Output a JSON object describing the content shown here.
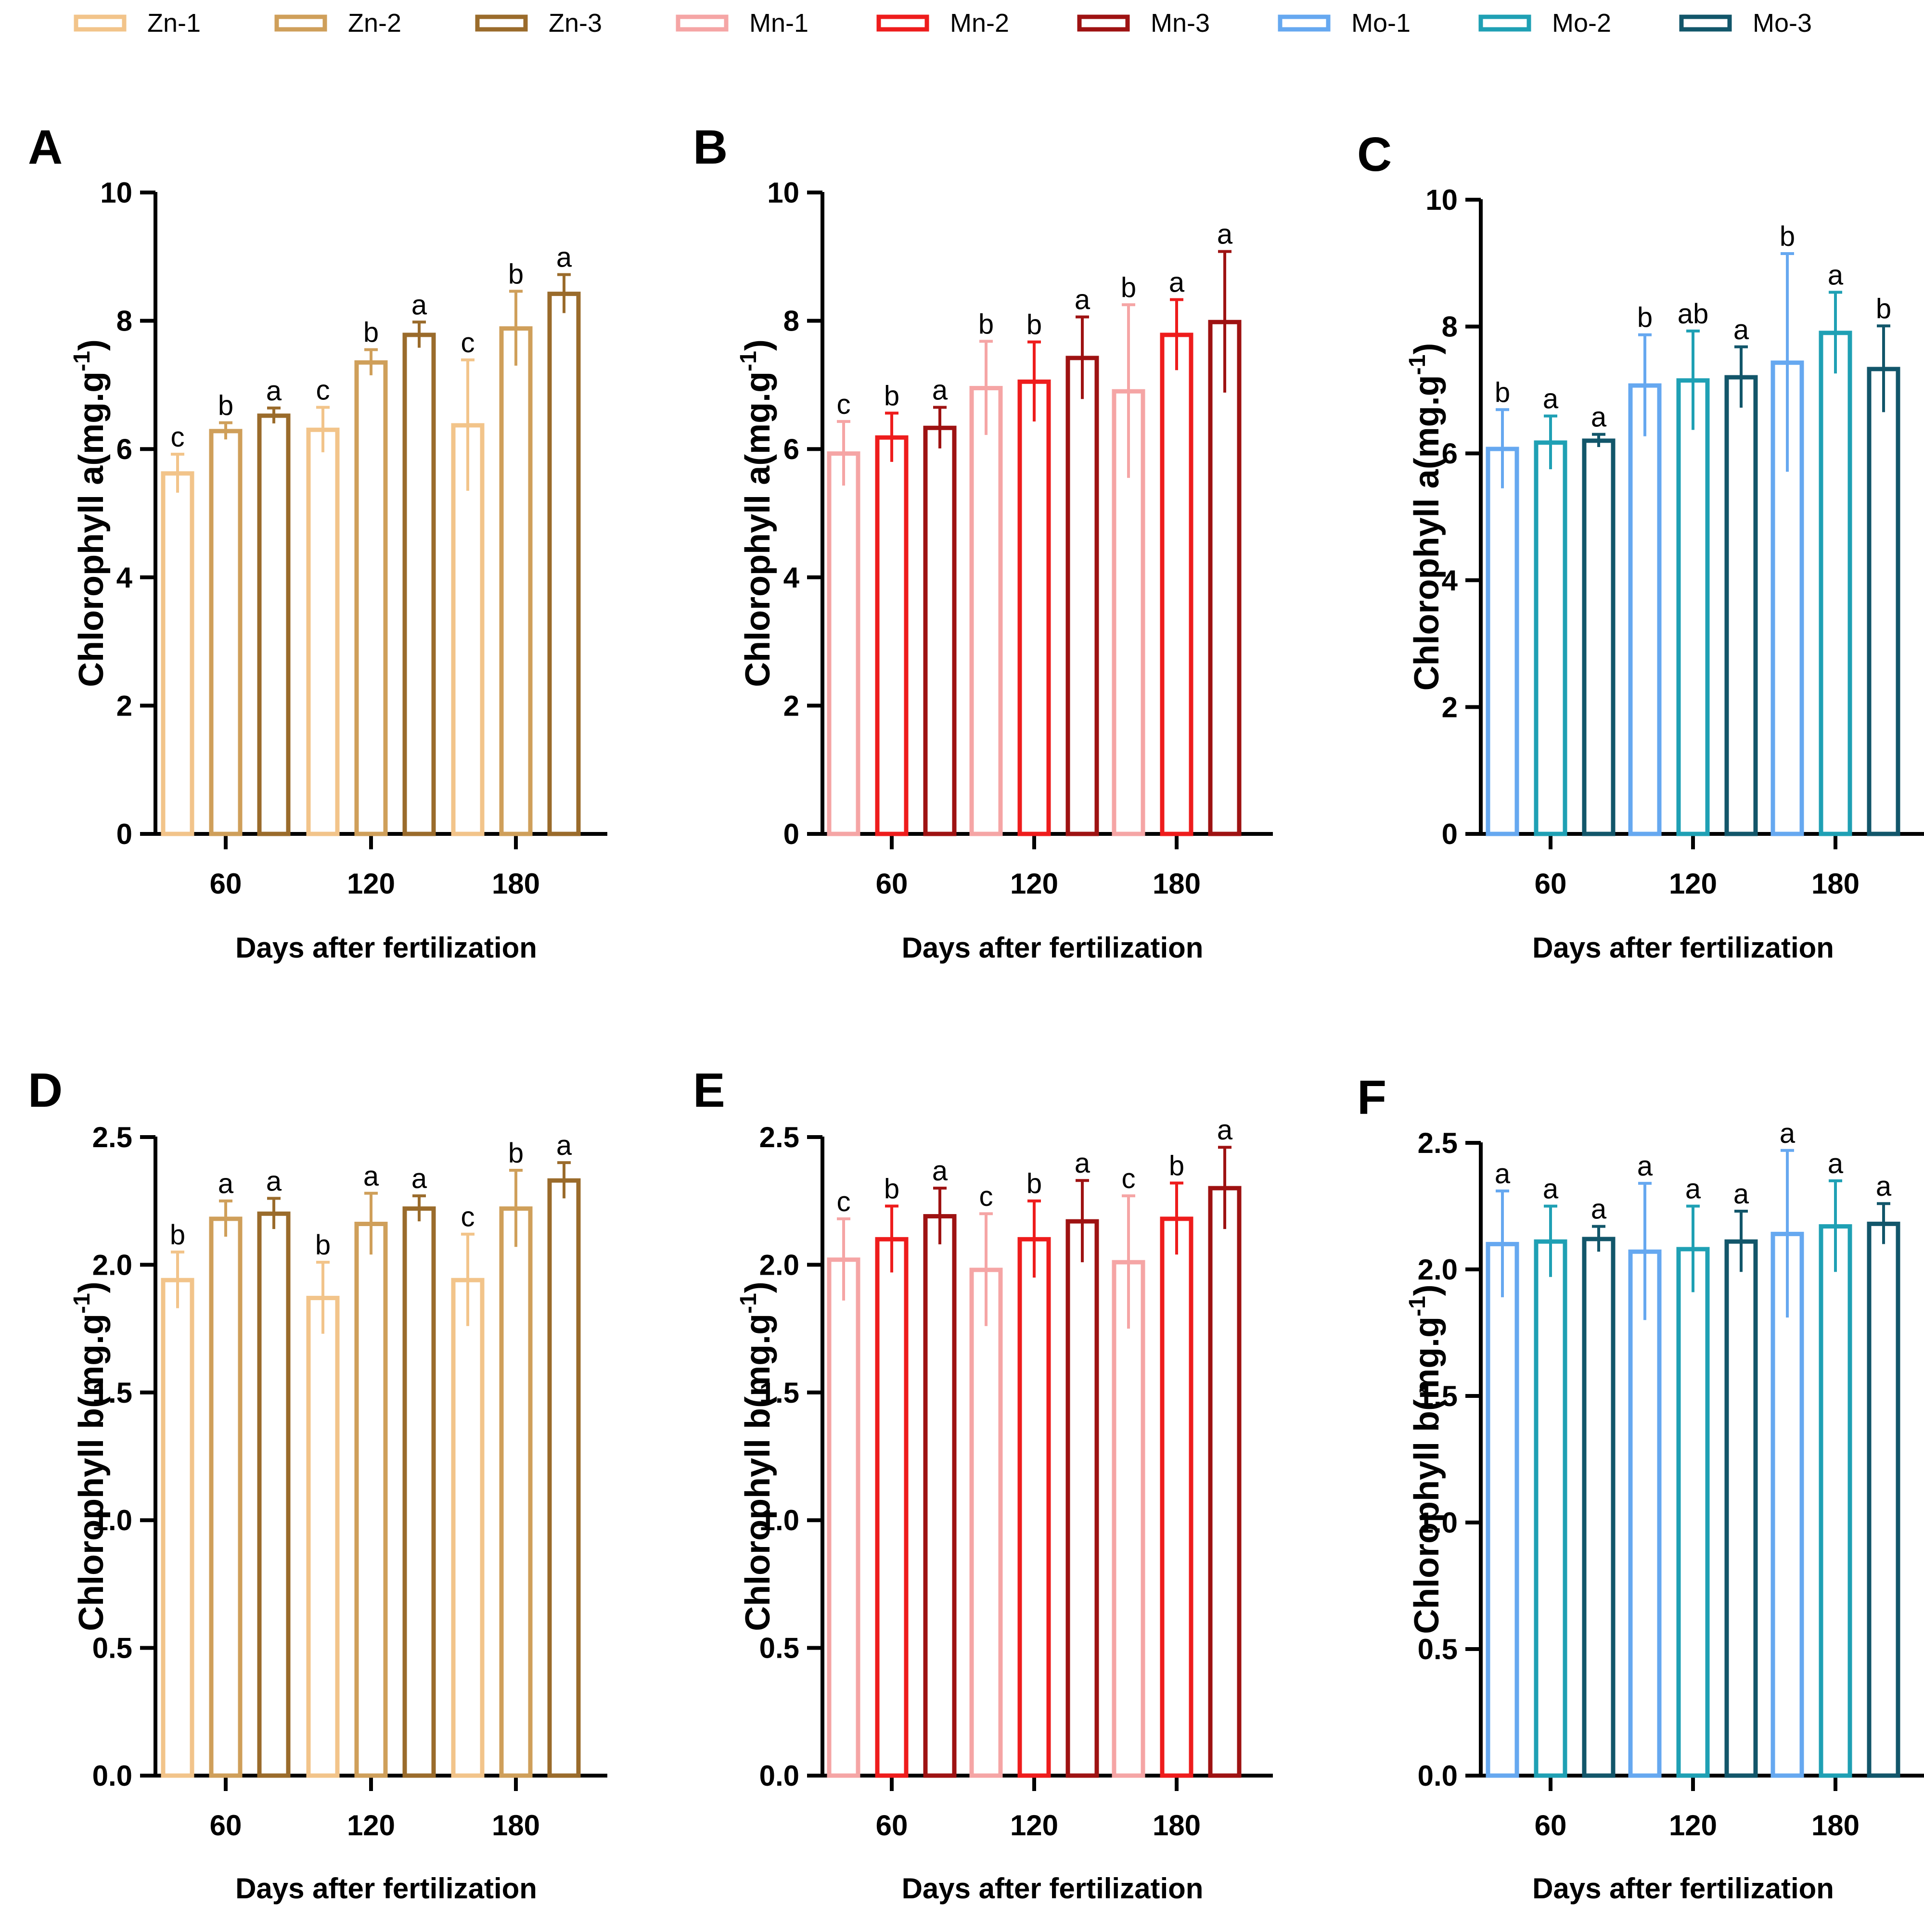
{
  "legend": [
    {
      "label": "Zn-1",
      "color": "#F2C48A"
    },
    {
      "label": "Zn-2",
      "color": "#CF9F5A"
    },
    {
      "label": "Zn-3",
      "color": "#9A6B2B"
    },
    {
      "label": "Mn-1",
      "color": "#F5A5A5"
    },
    {
      "label": "Mn-2",
      "color": "#EE1C1C"
    },
    {
      "label": "Mn-3",
      "color": "#9E1212"
    },
    {
      "label": "Mo-1",
      "color": "#66A8F0"
    },
    {
      "label": "Mo-2",
      "color": "#1FA0B4"
    },
    {
      "label": "Mo-3",
      "color": "#12566A"
    }
  ],
  "chart_data": [
    {
      "panel": "A",
      "type": "bar",
      "ylabel": "Chlorophyll a(mg.g",
      "ylabel_sup": "-1",
      "ylabel_end": ")",
      "xlabel": "Days after fertilization",
      "categories": [
        "60",
        "120",
        "180"
      ],
      "ylim": [
        0,
        10
      ],
      "yticks": [
        0,
        2,
        4,
        6,
        8,
        10
      ],
      "ytick_labels": [
        "0",
        "2",
        "4",
        "6",
        "8",
        "10"
      ],
      "series": [
        {
          "name": "Zn-1",
          "color": "#F2C48A",
          "values": [
            5.62,
            6.3,
            6.37
          ],
          "errors": [
            0.3,
            0.35,
            1.02
          ],
          "letters": [
            "c",
            "c",
            "c"
          ]
        },
        {
          "name": "Zn-2",
          "color": "#CF9F5A",
          "values": [
            6.28,
            7.35,
            7.88
          ],
          "errors": [
            0.13,
            0.2,
            0.58
          ],
          "letters": [
            "b",
            "b",
            "b"
          ]
        },
        {
          "name": "Zn-3",
          "color": "#9A6B2B",
          "values": [
            6.52,
            7.78,
            8.42
          ],
          "errors": [
            0.12,
            0.2,
            0.3
          ],
          "letters": [
            "a",
            "a",
            "a"
          ]
        }
      ]
    },
    {
      "panel": "B",
      "type": "bar",
      "ylabel": "Chlorophyll a(mg.g",
      "ylabel_sup": "-1",
      "ylabel_end": ")",
      "xlabel": "Days after fertilization",
      "categories": [
        "60",
        "120",
        "180"
      ],
      "ylim": [
        0,
        10
      ],
      "yticks": [
        0,
        2,
        4,
        6,
        8,
        10
      ],
      "ytick_labels": [
        "0",
        "2",
        "4",
        "6",
        "8",
        "10"
      ],
      "series": [
        {
          "name": "Mn-1",
          "color": "#F5A5A5",
          "values": [
            5.93,
            6.95,
            6.9
          ],
          "errors": [
            0.5,
            0.73,
            1.35
          ],
          "letters": [
            "c",
            "b",
            "b"
          ]
        },
        {
          "name": "Mn-2",
          "color": "#EE1C1C",
          "values": [
            6.18,
            7.05,
            7.78
          ],
          "errors": [
            0.38,
            0.62,
            0.55
          ],
          "letters": [
            "b",
            "b",
            "a"
          ]
        },
        {
          "name": "Mn-3",
          "color": "#9E1212",
          "values": [
            6.33,
            7.42,
            7.98
          ],
          "errors": [
            0.32,
            0.64,
            1.1
          ],
          "letters": [
            "a",
            "a",
            "a"
          ]
        }
      ]
    },
    {
      "panel": "C",
      "type": "bar",
      "ylabel": "Chlorophyll a(mg.g",
      "ylabel_sup": "-1",
      "ylabel_end": ")",
      "xlabel": "Days after fertilization",
      "categories": [
        "60",
        "120",
        "180"
      ],
      "ylim": [
        0,
        10
      ],
      "yticks": [
        0,
        2,
        4,
        6,
        8,
        10
      ],
      "ytick_labels": [
        "0",
        "2",
        "4",
        "6",
        "8",
        "10"
      ],
      "series": [
        {
          "name": "Mo-1",
          "color": "#66A8F0",
          "values": [
            6.07,
            7.07,
            7.43
          ],
          "errors": [
            0.62,
            0.8,
            1.72
          ],
          "letters": [
            "b",
            "b",
            "b"
          ]
        },
        {
          "name": "Mo-2",
          "color": "#1FA0B4",
          "values": [
            6.17,
            7.15,
            7.9
          ],
          "errors": [
            0.42,
            0.78,
            0.64
          ],
          "letters": [
            "a",
            "ab",
            "a"
          ]
        },
        {
          "name": "Mo-3",
          "color": "#12566A",
          "values": [
            6.2,
            7.2,
            7.33
          ],
          "errors": [
            0.1,
            0.48,
            0.68
          ],
          "letters": [
            "a",
            "a",
            "b"
          ]
        }
      ]
    },
    {
      "panel": "D",
      "type": "bar",
      "ylabel": "Chlorophyll b(mg.g",
      "ylabel_sup": "-1",
      "ylabel_end": ")",
      "xlabel": "Days after fertilization",
      "categories": [
        "60",
        "120",
        "180"
      ],
      "ylim": [
        0,
        2.5
      ],
      "yticks": [
        0,
        0.5,
        1,
        1.5,
        2,
        2.5
      ],
      "ytick_labels": [
        "0.0",
        "0.5",
        "1.0",
        "1.5",
        "2.0",
        "2.5"
      ],
      "series": [
        {
          "name": "Zn-1",
          "color": "#F2C48A",
          "values": [
            1.94,
            1.87,
            1.94
          ],
          "errors": [
            0.11,
            0.14,
            0.18
          ],
          "letters": [
            "b",
            "b",
            "c"
          ]
        },
        {
          "name": "Zn-2",
          "color": "#CF9F5A",
          "values": [
            2.18,
            2.16,
            2.22
          ],
          "errors": [
            0.07,
            0.12,
            0.15
          ],
          "letters": [
            "a",
            "a",
            "b"
          ]
        },
        {
          "name": "Zn-3",
          "color": "#9A6B2B",
          "values": [
            2.2,
            2.22,
            2.33
          ],
          "errors": [
            0.06,
            0.05,
            0.07
          ],
          "letters": [
            "a",
            "a",
            "a"
          ]
        }
      ]
    },
    {
      "panel": "E",
      "type": "bar",
      "ylabel": "Chlorophyll b(mg.g",
      "ylabel_sup": "-1",
      "ylabel_end": ")",
      "xlabel": "Days after fertilization",
      "categories": [
        "60",
        "120",
        "180"
      ],
      "ylim": [
        0,
        2.5
      ],
      "yticks": [
        0,
        0.5,
        1,
        1.5,
        2,
        2.5
      ],
      "ytick_labels": [
        "0.0",
        "0.5",
        "1.0",
        "1.5",
        "2.0",
        "2.5"
      ],
      "series": [
        {
          "name": "Mn-1",
          "color": "#F5A5A5",
          "values": [
            2.02,
            1.98,
            2.01
          ],
          "errors": [
            0.16,
            0.22,
            0.26
          ],
          "letters": [
            "c",
            "c",
            "c"
          ]
        },
        {
          "name": "Mn-2",
          "color": "#EE1C1C",
          "values": [
            2.1,
            2.1,
            2.18
          ],
          "errors": [
            0.13,
            0.15,
            0.14
          ],
          "letters": [
            "b",
            "b",
            "b"
          ]
        },
        {
          "name": "Mn-3",
          "color": "#9E1212",
          "values": [
            2.19,
            2.17,
            2.3
          ],
          "errors": [
            0.11,
            0.16,
            0.16
          ],
          "letters": [
            "a",
            "a",
            "a"
          ]
        }
      ]
    },
    {
      "panel": "F",
      "type": "bar",
      "ylabel": "Chlorophyll b(mg.g",
      "ylabel_sup": "-1",
      "ylabel_end": ")",
      "xlabel": "Days after fertilization",
      "categories": [
        "60",
        "120",
        "180"
      ],
      "ylim": [
        0,
        2.5
      ],
      "yticks": [
        0,
        0.5,
        1,
        1.5,
        2,
        2.5
      ],
      "ytick_labels": [
        "0.0",
        "0.5",
        "1.0",
        "1.5",
        "2.0",
        "2.5"
      ],
      "series": [
        {
          "name": "Mo-1",
          "color": "#66A8F0",
          "values": [
            2.1,
            2.07,
            2.14
          ],
          "errors": [
            0.21,
            0.27,
            0.33
          ],
          "letters": [
            "a",
            "a",
            "a"
          ]
        },
        {
          "name": "Mo-2",
          "color": "#1FA0B4",
          "values": [
            2.11,
            2.08,
            2.17
          ],
          "errors": [
            0.14,
            0.17,
            0.18
          ],
          "letters": [
            "a",
            "a",
            "a"
          ]
        },
        {
          "name": "Mo-3",
          "color": "#12566A",
          "values": [
            2.12,
            2.11,
            2.18
          ],
          "errors": [
            0.05,
            0.12,
            0.08
          ],
          "letters": [
            "a",
            "a",
            "a"
          ]
        }
      ]
    }
  ]
}
